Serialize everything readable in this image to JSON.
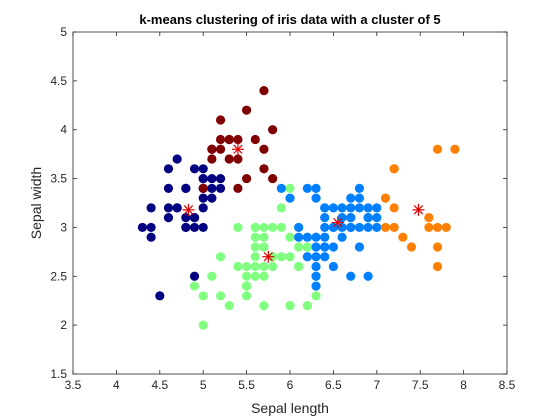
{
  "chart_data": {
    "type": "scatter",
    "title": "k-means clustering of iris data with a cluster of 5",
    "xlabel": "Sepal length",
    "ylabel": "Sepal width",
    "xlim": [
      3.5,
      8.5
    ],
    "ylim": [
      1.5,
      5
    ],
    "xticks": [
      "3.5",
      "4",
      "4.5",
      "5",
      "5.5",
      "6",
      "6.5",
      "7",
      "7.5",
      "8",
      "8.5"
    ],
    "yticks": [
      "1.5",
      "2",
      "2.5",
      "3",
      "3.5",
      "4",
      "4.5",
      "5"
    ],
    "grid": false,
    "legend": "none",
    "series": [
      {
        "color": "#000080",
        "points": [
          [
            4.3,
            3.0
          ],
          [
            4.4,
            3.0
          ],
          [
            4.4,
            2.9
          ],
          [
            4.4,
            3.2
          ],
          [
            4.5,
            2.3
          ],
          [
            4.6,
            3.1
          ],
          [
            4.6,
            3.4
          ],
          [
            4.6,
            3.6
          ],
          [
            4.6,
            3.2
          ],
          [
            4.7,
            3.2
          ],
          [
            4.7,
            3.2
          ],
          [
            4.8,
            3.4
          ],
          [
            4.8,
            3.0
          ],
          [
            4.8,
            3.4
          ],
          [
            4.8,
            3.1
          ],
          [
            4.8,
            3.0
          ],
          [
            4.9,
            3.0
          ],
          [
            4.9,
            3.1
          ],
          [
            4.9,
            3.1
          ],
          [
            4.9,
            3.6
          ],
          [
            4.9,
            2.5
          ],
          [
            5.0,
            3.6
          ],
          [
            5.0,
            3.4
          ],
          [
            5.0,
            3.0
          ],
          [
            5.0,
            3.4
          ],
          [
            5.0,
            3.2
          ],
          [
            5.0,
            3.5
          ],
          [
            5.0,
            3.5
          ],
          [
            5.0,
            3.3
          ],
          [
            5.1,
            3.5
          ],
          [
            5.1,
            3.3
          ],
          [
            5.1,
            3.4
          ],
          [
            5.2,
            3.5
          ],
          [
            5.2,
            3.4
          ],
          [
            4.7,
            3.7
          ]
        ]
      },
      {
        "color": "#800000",
        "points": [
          [
            5.1,
            3.7
          ],
          [
            5.1,
            3.8
          ],
          [
            5.1,
            3.8
          ],
          [
            5.2,
            4.1
          ],
          [
            5.2,
            3.8
          ],
          [
            5.3,
            3.7
          ],
          [
            5.3,
            3.9
          ],
          [
            5.3,
            3.9
          ],
          [
            5.4,
            3.7
          ],
          [
            5.4,
            3.9
          ],
          [
            5.4,
            3.4
          ],
          [
            5.5,
            4.2
          ],
          [
            5.5,
            3.5
          ],
          [
            5.6,
            3.9
          ],
          [
            5.7,
            4.4
          ],
          [
            5.7,
            3.8
          ],
          [
            5.7,
            3.6
          ],
          [
            5.8,
            4.0
          ],
          [
            5.8,
            3.5
          ],
          [
            5.2,
            3.9
          ],
          [
            5.0,
            3.4
          ]
        ]
      },
      {
        "color": "#80ff80",
        "points": [
          [
            4.9,
            2.4
          ],
          [
            5.0,
            2.0
          ],
          [
            5.0,
            2.3
          ],
          [
            5.1,
            2.5
          ],
          [
            5.2,
            2.7
          ],
          [
            5.4,
            3.0
          ],
          [
            5.5,
            2.3
          ],
          [
            5.5,
            2.4
          ],
          [
            5.5,
            2.4
          ],
          [
            5.5,
            2.5
          ],
          [
            5.5,
            2.6
          ],
          [
            5.6,
            2.9
          ],
          [
            5.6,
            3.0
          ],
          [
            5.6,
            2.5
          ],
          [
            5.6,
            2.7
          ],
          [
            5.6,
            2.8
          ],
          [
            5.6,
            3.0
          ],
          [
            5.7,
            2.8
          ],
          [
            5.7,
            2.6
          ],
          [
            5.7,
            2.9
          ],
          [
            5.7,
            3.0
          ],
          [
            5.7,
            2.5
          ],
          [
            5.7,
            2.8
          ],
          [
            5.8,
            2.7
          ],
          [
            5.8,
            2.7
          ],
          [
            5.8,
            2.6
          ],
          [
            5.8,
            2.7
          ],
          [
            5.9,
            3.0
          ],
          [
            5.9,
            3.2
          ],
          [
            6.0,
            2.2
          ],
          [
            6.0,
            2.9
          ],
          [
            6.0,
            2.7
          ],
          [
            6.0,
            3.4
          ],
          [
            6.0,
            2.2
          ],
          [
            6.1,
            2.8
          ],
          [
            6.1,
            3.0
          ],
          [
            6.1,
            2.6
          ],
          [
            6.2,
            2.2
          ],
          [
            6.2,
            2.9
          ],
          [
            6.2,
            2.8
          ],
          [
            6.3,
            2.3
          ],
          [
            6.3,
            2.5
          ],
          [
            5.4,
            2.6
          ],
          [
            5.3,
            2.2
          ],
          [
            5.9,
            2.7
          ],
          [
            5.8,
            3.0
          ],
          [
            5.5,
            2.4
          ],
          [
            5.2,
            2.3
          ],
          [
            5.7,
            2.2
          ],
          [
            5.6,
            2.6
          ],
          [
            6.0,
            2.9
          ],
          [
            6.1,
            2.6
          ]
        ]
      },
      {
        "color": "#0080ff",
        "points": [
          [
            5.9,
            3.4
          ],
          [
            6.0,
            3.3
          ],
          [
            6.1,
            3.0
          ],
          [
            6.1,
            2.9
          ],
          [
            6.2,
            2.9
          ],
          [
            6.2,
            3.4
          ],
          [
            6.3,
            3.3
          ],
          [
            6.3,
            2.9
          ],
          [
            6.3,
            2.8
          ],
          [
            6.3,
            3.4
          ],
          [
            6.3,
            2.7
          ],
          [
            6.3,
            2.5
          ],
          [
            6.4,
            3.2
          ],
          [
            6.4,
            2.9
          ],
          [
            6.4,
            2.8
          ],
          [
            6.4,
            3.1
          ],
          [
            6.4,
            2.7
          ],
          [
            6.4,
            3.2
          ],
          [
            6.4,
            2.8
          ],
          [
            6.5,
            2.8
          ],
          [
            6.5,
            3.0
          ],
          [
            6.5,
            3.2
          ],
          [
            6.5,
            3.0
          ],
          [
            6.6,
            2.9
          ],
          [
            6.6,
            3.0
          ],
          [
            6.7,
            3.1
          ],
          [
            6.7,
            3.0
          ],
          [
            6.7,
            2.5
          ],
          [
            6.7,
            3.3
          ],
          [
            6.7,
            3.1
          ],
          [
            6.7,
            3.0
          ],
          [
            6.8,
            2.8
          ],
          [
            6.8,
            3.2
          ],
          [
            6.8,
            3.0
          ],
          [
            6.9,
            3.1
          ],
          [
            6.9,
            3.2
          ],
          [
            6.9,
            3.1
          ],
          [
            7.0,
            3.2
          ],
          [
            7.0,
            3.1
          ],
          [
            6.8,
            3.3
          ],
          [
            6.6,
            3.1
          ],
          [
            6.5,
            2.6
          ],
          [
            6.9,
            2.5
          ],
          [
            6.3,
            2.4
          ],
          [
            6.3,
            2.6
          ],
          [
            6.4,
            3.0
          ],
          [
            6.2,
            2.7
          ],
          [
            6.7,
            3.2
          ],
          [
            6.8,
            3.4
          ],
          [
            6.6,
            3.2
          ],
          [
            7.0,
            3.0
          ],
          [
            6.9,
            3.0
          ]
        ]
      },
      {
        "color": "#ff8000",
        "points": [
          [
            7.1,
            3.0
          ],
          [
            7.1,
            3.3
          ],
          [
            7.2,
            3.6
          ],
          [
            7.2,
            3.2
          ],
          [
            7.2,
            3.0
          ],
          [
            7.3,
            2.9
          ],
          [
            7.4,
            2.8
          ],
          [
            7.6,
            3.0
          ],
          [
            7.7,
            3.8
          ],
          [
            7.7,
            2.6
          ],
          [
            7.7,
            2.8
          ],
          [
            7.7,
            3.0
          ],
          [
            7.8,
            3.0
          ],
          [
            7.9,
            3.8
          ],
          [
            7.2,
            3.6
          ],
          [
            7.6,
            3.1
          ]
        ]
      }
    ],
    "centroids": {
      "color": "#e00000",
      "points": [
        [
          4.83,
          3.18
        ],
        [
          5.4,
          3.8
        ],
        [
          5.75,
          2.7
        ],
        [
          6.55,
          3.05
        ],
        [
          7.48,
          3.18
        ]
      ]
    }
  }
}
